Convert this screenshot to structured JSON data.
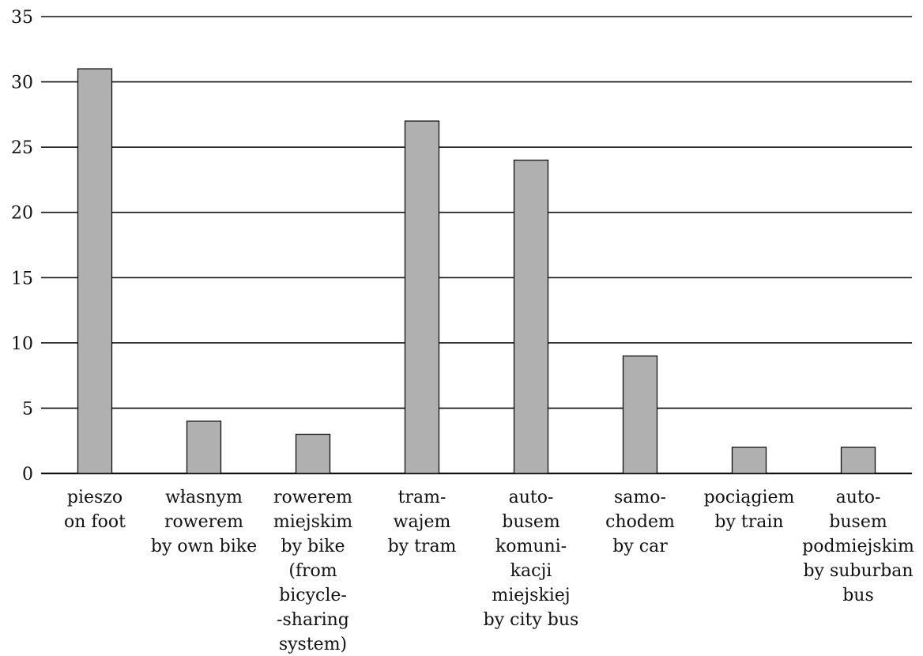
{
  "chart_data": {
    "type": "bar",
    "title": "",
    "xlabel": "",
    "ylabel": "",
    "ylim": [
      0,
      35
    ],
    "y_ticks": [
      0,
      5,
      10,
      15,
      20,
      25,
      30,
      35
    ],
    "grid": true,
    "colors": {
      "bar_fill": "#b0b0b0",
      "bar_stroke": "#111111",
      "grid": "#111111"
    },
    "categories": [
      {
        "lines": [
          "pieszo",
          "on foot"
        ]
      },
      {
        "lines": [
          "własnym",
          "rowerem",
          "by own bike"
        ]
      },
      {
        "lines": [
          "rowerem",
          "miejskim",
          "by bike",
          "(from",
          "bicycle-",
          "-sharing",
          "system)"
        ]
      },
      {
        "lines": [
          "tram-",
          "wajem",
          "by tram"
        ]
      },
      {
        "lines": [
          "auto-",
          "busem",
          "komuni-",
          "kacji",
          "miejskiej",
          "by city bus"
        ]
      },
      {
        "lines": [
          "samo-",
          "chodem",
          "by car"
        ]
      },
      {
        "lines": [
          "pociągiem",
          "by train"
        ]
      },
      {
        "lines": [
          "auto-",
          "busem",
          "podmiejskim",
          "by suburban",
          "bus"
        ]
      }
    ],
    "values": [
      31,
      4,
      3,
      27,
      24,
      9,
      2,
      2
    ]
  }
}
